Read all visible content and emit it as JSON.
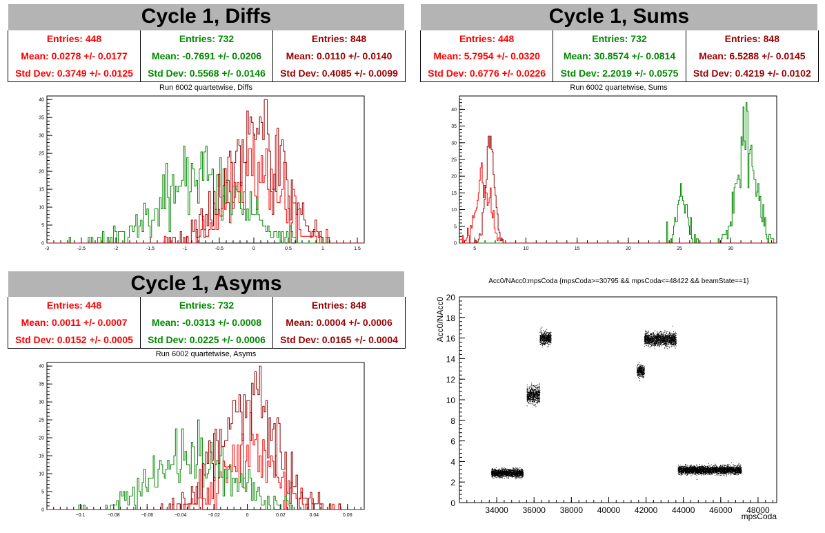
{
  "colors": {
    "red": "#ff0000",
    "green": "#008800",
    "darkred": "#990000",
    "black": "#000000",
    "bar": "#b4b4b4"
  },
  "panels": {
    "diffs": {
      "title": "Cycle 1, Diffs",
      "subtitle": "Run 6002 quartetwise, Diffs",
      "stats": [
        {
          "color": "red",
          "entries": "Entries: 448",
          "mean": "Mean: 0.0278 +/- 0.0177",
          "std": "Std Dev: 0.3749 +/- 0.0125"
        },
        {
          "color": "green",
          "entries": "Entries: 732",
          "mean": "Mean: -0.7691 +/- 0.0206",
          "std": "Std Dev: 0.5568 +/- 0.0146"
        },
        {
          "color": "darkred",
          "entries": "Entries: 848",
          "mean": "Mean: 0.0110 +/- 0.0140",
          "std": "Std Dev: 0.4085 +/- 0.0099"
        }
      ]
    },
    "sums": {
      "title": "Cycle 1, Sums",
      "subtitle": "Run 6002 quartetwise, Sums",
      "stats": [
        {
          "color": "red",
          "entries": "Entries: 448",
          "mean": "Mean: 5.7954 +/- 0.0320",
          "std": "Std Dev: 0.6776 +/- 0.0226"
        },
        {
          "color": "green",
          "entries": "Entries: 732",
          "mean": "Mean: 30.8574 +/- 0.0814",
          "std": "Std Dev: 2.2019 +/- 0.0575"
        },
        {
          "color": "darkred",
          "entries": "Entries: 848",
          "mean": "Mean: 6.5288 +/- 0.0145",
          "std": "Std Dev: 0.4219 +/- 0.0102"
        }
      ]
    },
    "asyms": {
      "title": "Cycle 1, Asyms",
      "subtitle": "Run 6002 quartetwise, Asyms",
      "stats": [
        {
          "color": "red",
          "entries": "Entries: 448",
          "mean": "Mean: 0.0011 +/- 0.0007",
          "std": "Std Dev: 0.0152 +/- 0.0005"
        },
        {
          "color": "green",
          "entries": "Entries: 732",
          "mean": "Mean: -0.0313 +/- 0.0008",
          "std": "Std Dev: 0.0225 +/- 0.0006"
        },
        {
          "color": "darkred",
          "entries": "Entries: 848",
          "mean": "Mean: 0.0004 +/- 0.0006",
          "std": "Std Dev: 0.0165 +/- 0.0004"
        }
      ]
    },
    "scatter": {
      "title": "Acc0/NAcc0:mpsCoda {mpsCoda>=30795 && mpsCoda<=48422 && beamState==1}"
    }
  },
  "chart_data": [
    {
      "type": "histogram",
      "name": "diffs",
      "title": "Run 6002 quartetwise, Diffs",
      "xlim": [
        -3,
        1.6
      ],
      "ylim": [
        0,
        41
      ],
      "xticks": [
        -3,
        -2.5,
        -2,
        -1.5,
        -1,
        -0.5,
        0,
        0.5,
        1,
        1.5
      ],
      "yticks": [
        0,
        5,
        10,
        15,
        20,
        25,
        30,
        35,
        40
      ],
      "series": [
        {
          "color": "red",
          "entries": 448,
          "mean": 0.0278,
          "std": 0.3749
        },
        {
          "color": "green",
          "entries": 732,
          "mean": -0.7691,
          "std": 0.5568
        },
        {
          "color": "darkred",
          "entries": 848,
          "mean": 0.011,
          "std": 0.4085
        }
      ]
    },
    {
      "type": "histogram",
      "name": "sums",
      "title": "Run 6002 quartetwise, Sums",
      "xlim": [
        3.5,
        34.5
      ],
      "ylim": [
        0,
        44
      ],
      "xticks": [
        5,
        10,
        15,
        20,
        25,
        30
      ],
      "yticks": [
        0,
        5,
        10,
        15,
        20,
        25,
        30,
        35,
        40
      ],
      "series": [
        {
          "color": "red",
          "entries": 448,
          "mean": 5.7954,
          "std": 0.6776
        },
        {
          "color": "green",
          "entries": 732,
          "mean": 30.8574,
          "std": 2.2019
        },
        {
          "color": "darkred",
          "entries": 848,
          "mean": 6.5288,
          "std": 0.4219
        }
      ]
    },
    {
      "type": "histogram",
      "name": "asyms",
      "title": "Run 6002 quartetwise, Asyms",
      "xlim": [
        -0.12,
        0.07
      ],
      "ylim": [
        0,
        41
      ],
      "xticks": [
        -0.1,
        -0.08,
        -0.06,
        -0.04,
        -0.02,
        0,
        0.02,
        0.04,
        0.06
      ],
      "xticklabels": [
        "−0.1",
        "−0.08",
        "−0.06",
        "−0.04",
        "−0.02",
        "0",
        "0.02",
        "0.04",
        "0.06"
      ],
      "yticks": [
        0,
        5,
        10,
        15,
        20,
        25,
        30,
        35,
        40
      ],
      "series": [
        {
          "color": "red",
          "entries": 448,
          "mean": 0.0011,
          "std": 0.0152
        },
        {
          "color": "green",
          "entries": 732,
          "mean": -0.0313,
          "std": 0.0225
        },
        {
          "color": "darkred",
          "entries": 848,
          "mean": 0.0004,
          "std": 0.0165
        }
      ]
    },
    {
      "type": "scatter",
      "name": "scatter",
      "title": "Acc0/NAcc0:mpsCoda {mpsCoda>=30795 && mpsCoda<=48422 && beamState==1}",
      "xlabel": "mpsCoda",
      "ylabel": "Acc0/NAcc0",
      "xlim": [
        32000,
        49000
      ],
      "ylim": [
        0,
        20
      ],
      "xticks": [
        34000,
        36000,
        38000,
        40000,
        42000,
        44000,
        46000,
        48000
      ],
      "yticks": [
        0,
        2,
        4,
        6,
        8,
        10,
        12,
        14,
        16,
        18,
        20
      ],
      "clusters": [
        {
          "x": [
            33700,
            35400
          ],
          "y_center": 2.9,
          "y_spread": 0.35
        },
        {
          "x": [
            35600,
            36300
          ],
          "y_center": 10.5,
          "y_spread": 0.75
        },
        {
          "x": [
            36300,
            36900
          ],
          "y_center": 16.0,
          "y_spread": 0.55
        },
        {
          "x": [
            41500,
            41900
          ],
          "y_center": 12.8,
          "y_spread": 0.5
        },
        {
          "x": [
            41900,
            43600
          ],
          "y_center": 15.9,
          "y_spread": 0.55
        },
        {
          "x": [
            43700,
            47100
          ],
          "y_center": 3.2,
          "y_spread": 0.35
        }
      ]
    }
  ]
}
